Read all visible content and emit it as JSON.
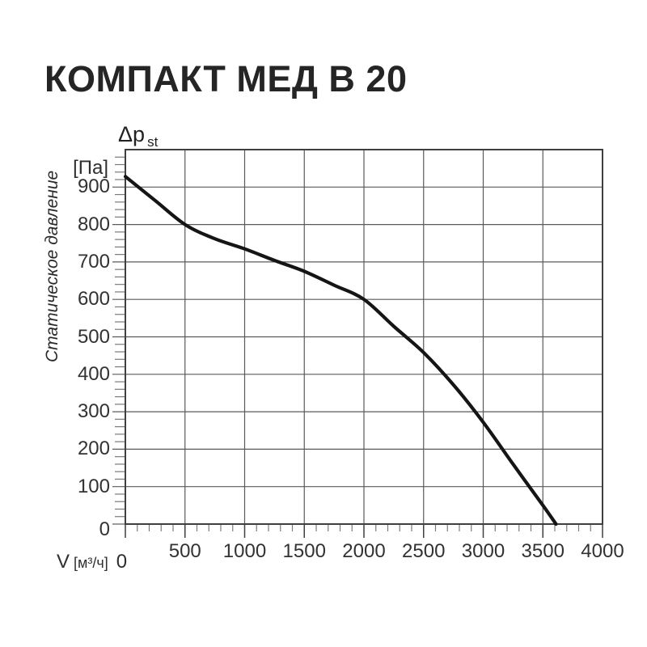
{
  "title": "КОМПАКТ МЕД В 20",
  "chart_data": {
    "type": "line",
    "title": "КОМПАКТ МЕД В 20",
    "x_axis": {
      "label": "V",
      "unit_label": "[м³/ч]",
      "min": 0,
      "max": 4000,
      "major_step": 500,
      "minor_step": 100,
      "ticks": [
        0,
        500,
        1000,
        1500,
        2000,
        2500,
        3000,
        3500,
        4000
      ]
    },
    "y_axis": {
      "symbol": "Δp",
      "symbol_sub": "st",
      "unit_label": "[Па]",
      "label": "Статическое давление",
      "min": 0,
      "max": 1000,
      "major_step": 100,
      "minor_step": 20,
      "ticks": [
        0,
        100,
        200,
        300,
        400,
        500,
        600,
        700,
        800,
        900
      ]
    },
    "grid": true,
    "legend": false,
    "series": [
      {
        "name": "static-pressure-curve",
        "points": [
          [
            0,
            928
          ],
          [
            250,
            864
          ],
          [
            500,
            800
          ],
          [
            750,
            762
          ],
          [
            1000,
            735
          ],
          [
            1250,
            704
          ],
          [
            1500,
            675
          ],
          [
            1750,
            638
          ],
          [
            2000,
            600
          ],
          [
            2250,
            528
          ],
          [
            2500,
            458
          ],
          [
            2750,
            372
          ],
          [
            3000,
            272
          ],
          [
            3250,
            160
          ],
          [
            3500,
            50
          ],
          [
            3610,
            0
          ]
        ]
      }
    ]
  },
  "colors": {
    "background": "#ffffff",
    "text": "#2e2e2e",
    "grid": "#5a5a5a",
    "border": "#3f3f3f",
    "minor_tick": "#7a7a7a",
    "curve": "#151515"
  }
}
